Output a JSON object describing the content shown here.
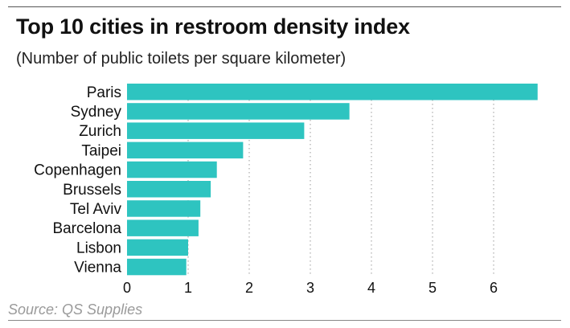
{
  "header": {
    "title": "Top 10 cities in restroom density index",
    "subtitle": "(Number of public toilets per square kilometer)"
  },
  "footer": {
    "source": "Source: QS Supplies"
  },
  "colors": {
    "bar": "#2ec4c0",
    "grid": "#9a9a9a",
    "text": "#111111"
  },
  "chart_data": {
    "type": "bar",
    "orientation": "horizontal",
    "categories": [
      "Paris",
      "Sydney",
      "Zurich",
      "Taipei",
      "Copenhagen",
      "Brussels",
      "Tel Aviv",
      "Barcelona",
      "Lisbon",
      "Vienna"
    ],
    "values": [
      6.72,
      3.64,
      2.9,
      1.9,
      1.47,
      1.37,
      1.2,
      1.17,
      1.0,
      0.97
    ],
    "xticks": [
      0,
      1,
      2,
      3,
      4,
      5,
      6
    ],
    "xlim": [
      0,
      7
    ],
    "grid": true,
    "legend": "none"
  }
}
